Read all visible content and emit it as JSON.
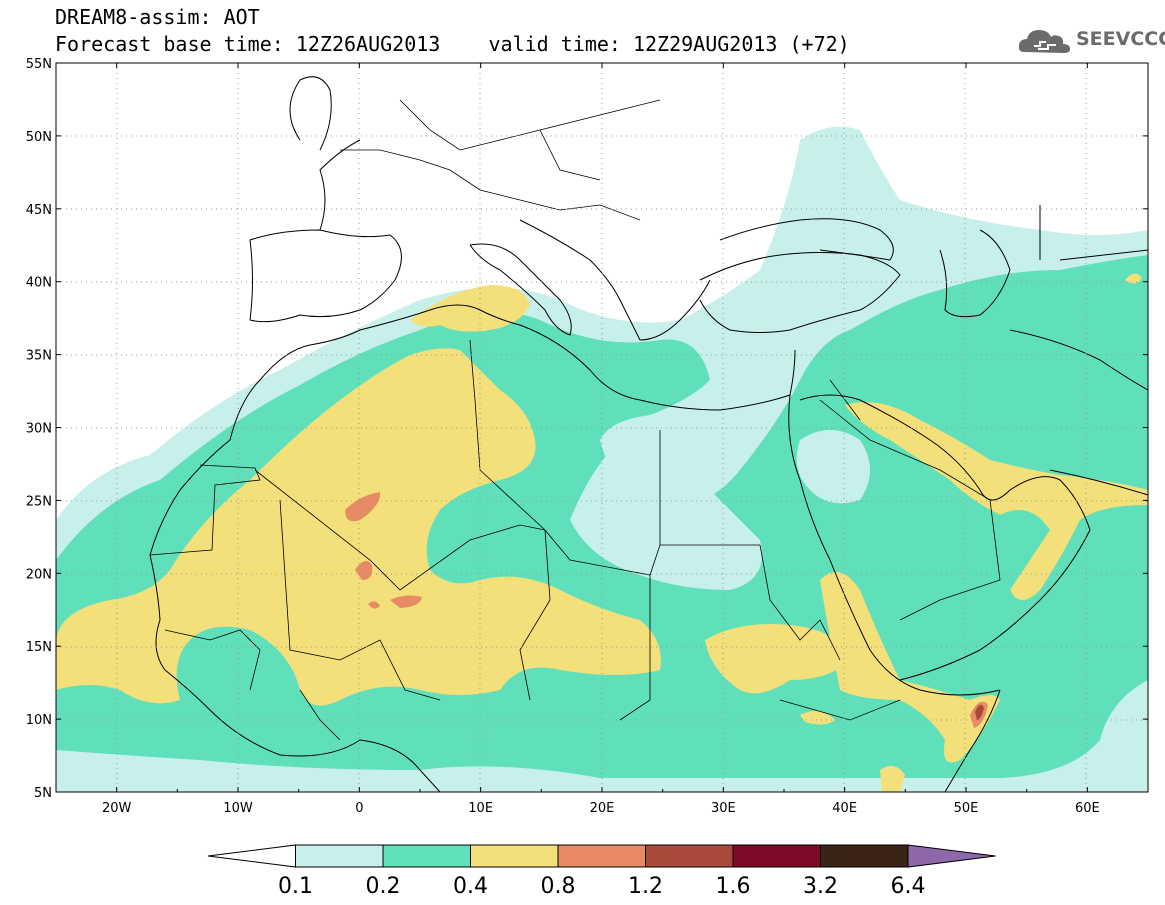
{
  "header": {
    "title": "DREAM8-assim: AOT",
    "base_time_label": "Forecast base time: 12Z26AUG2013",
    "valid_time_label": "valid time: 12Z29AUG2013 (+72)"
  },
  "logo": {
    "text": "SEEVCCC",
    "icon": "cloud-icon"
  },
  "map": {
    "lat_labels": [
      "55N",
      "50N",
      "45N",
      "40N",
      "35N",
      "30N",
      "25N",
      "20N",
      "15N",
      "10N",
      "5N"
    ],
    "lon_labels": [
      "20W",
      "10W",
      "0",
      "10E",
      "20E",
      "30E",
      "40E",
      "50E",
      "60E"
    ],
    "lat_range": [
      5,
      55
    ],
    "lon_range": [
      -25,
      65
    ],
    "gridlines": "dotted"
  },
  "legend": {
    "labels": [
      "0.1",
      "0.2",
      "0.4",
      "0.8",
      "1.2",
      "1.6",
      "3.2",
      "6.4"
    ],
    "colors": [
      "#ffffff",
      "#c8f0ea",
      "#5fe0ba",
      "#f4e07a",
      "#e88a64",
      "#a84a3c",
      "#7e0a2a",
      "#3a2416",
      "#8e68a8"
    ]
  }
}
